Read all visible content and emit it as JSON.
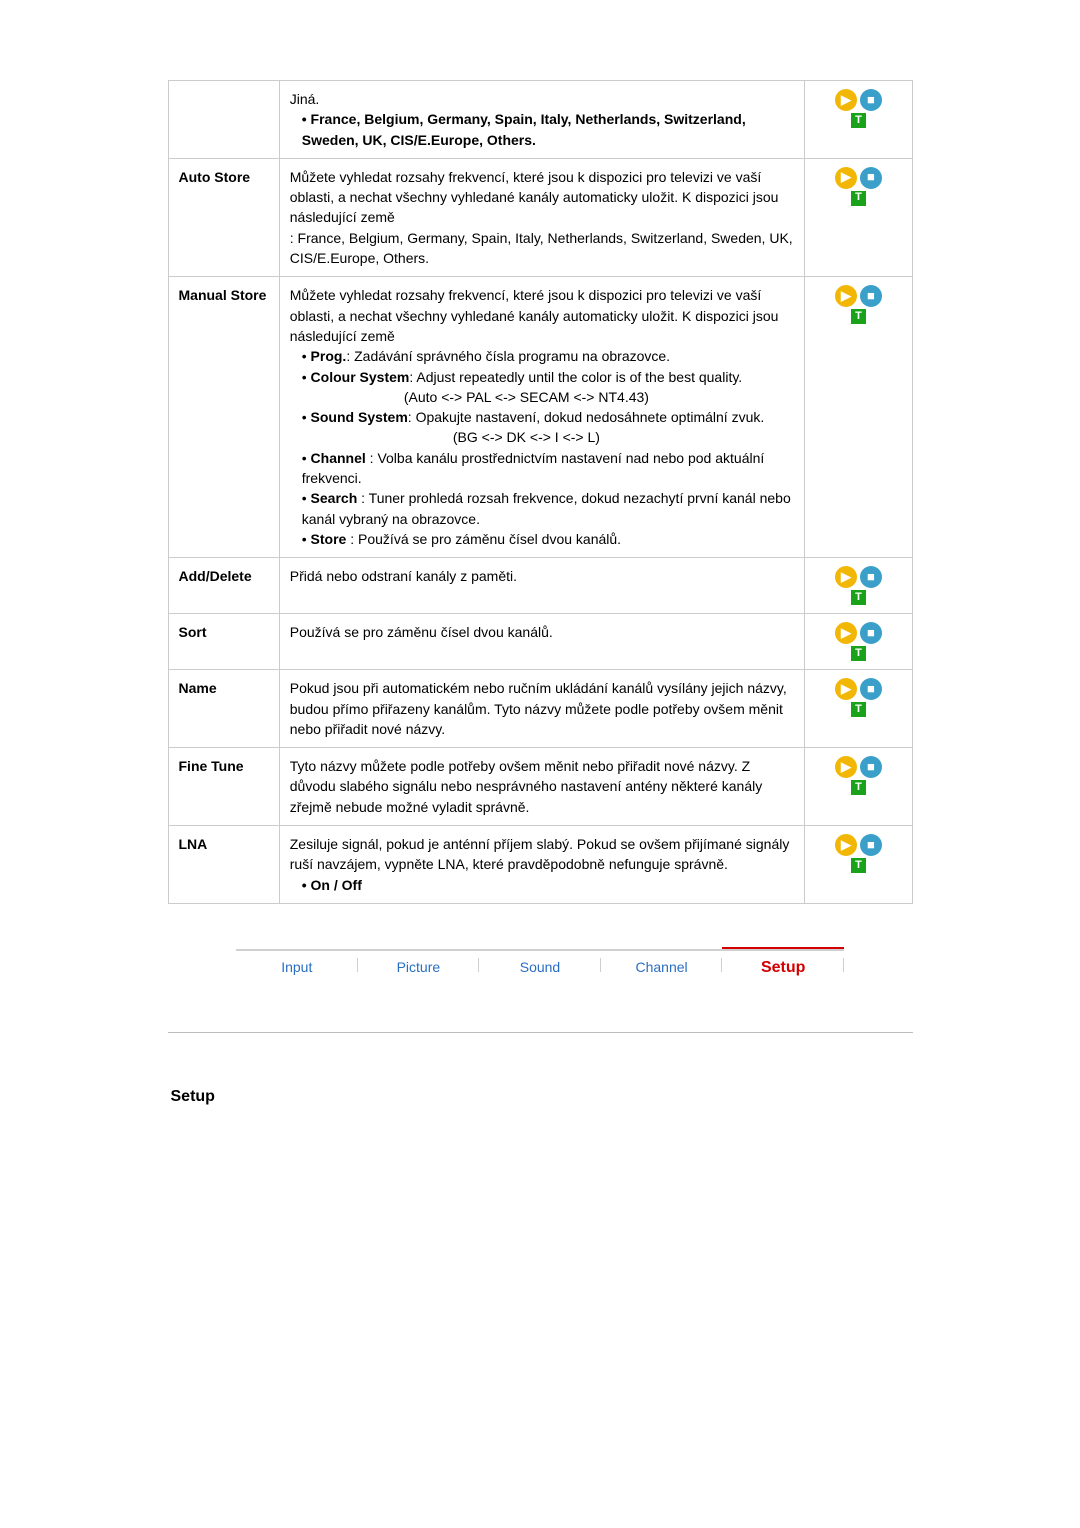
{
  "table": {
    "rows": [
      {
        "label": "",
        "desc_html": [
          {
            "t": "text",
            "v": "Jiná."
          },
          {
            "t": "bullet_bold",
            "v": "France, Belgium, Germany, Spain, Italy, Netherlands, Switzerland, Sweden, UK, CIS/E.Europe, Others."
          }
        ],
        "icons": true
      },
      {
        "label": "Auto Store",
        "desc_html": [
          {
            "t": "text",
            "v": "Můžete vyhledat rozsahy frekvencí, které jsou k dispozici pro televizi ve vaší oblasti, a nechat všechny vyhledané kanály automaticky uložit. K dispozici jsou následující země"
          },
          {
            "t": "text",
            "v": ": France, Belgium, Germany, Spain, Italy, Netherlands, Switzerland, Sweden, UK, CIS/E.Europe, Others."
          }
        ],
        "icons": true
      },
      {
        "label": "Manual Store",
        "desc_html": [
          {
            "t": "text",
            "v": "Můžete vyhledat rozsahy frekvencí, které jsou k dispozici pro televizi ve vaší oblasti, a nechat všechny vyhledané kanály automaticky uložit. K dispozici jsou následující země"
          },
          {
            "t": "bullet_kv",
            "k": "Prog.",
            "v": ": Zadávání správného čísla programu na obrazovce."
          },
          {
            "t": "bullet_kv",
            "k": "Colour System",
            "v": ": Adjust repeatedly until the color is of the best quality."
          },
          {
            "t": "center",
            "v": "(Auto <-> PAL <-> SECAM <-> NT4.43)"
          },
          {
            "t": "bullet_kv",
            "k": "Sound System",
            "v": ": Opakujte nastavení, dokud nedosáhnete optimální zvuk."
          },
          {
            "t": "center",
            "v": "(BG <-> DK <-> I <-> L)"
          },
          {
            "t": "bullet_kv",
            "k": "Channel",
            "v": " : Volba kanálu prostřednictvím nastavení nad nebo pod aktuální frekvenci."
          },
          {
            "t": "bullet_kv",
            "k": "Search",
            "v": " : Tuner prohledá rozsah frekvence, dokud nezachytí první kanál nebo kanál vybraný na obrazovce."
          },
          {
            "t": "bullet_kv",
            "k": "Store",
            "v": " : Používá se pro záměnu čísel dvou kanálů."
          }
        ],
        "icons": true
      },
      {
        "label": "Add/Delete",
        "desc_html": [
          {
            "t": "text",
            "v": "Přidá nebo odstraní kanály z paměti."
          }
        ],
        "icons": true
      },
      {
        "label": "Sort",
        "desc_html": [
          {
            "t": "text",
            "v": "Používá se pro záměnu čísel dvou kanálů."
          }
        ],
        "icons": true
      },
      {
        "label": "Name",
        "desc_html": [
          {
            "t": "text",
            "v": "Pokud jsou při automatickém nebo ručním ukládání kanálů vysílány jejich názvy, budou přímo přiřazeny kanálům. Tyto názvy můžete podle potřeby ovšem měnit nebo přiřadit nové názvy."
          }
        ],
        "icons": true
      },
      {
        "label": "Fine Tune",
        "desc_html": [
          {
            "t": "text",
            "v": "Tyto názvy můžete podle potřeby ovšem měnit nebo přiřadit nové názvy. Z důvodu slabého signálu nebo nesprávného nastavení antény některé kanály zřejmě nebude možné vyladit správně."
          }
        ],
        "icons": true
      },
      {
        "label": "LNA",
        "desc_html": [
          {
            "t": "text",
            "v": "Zesiluje signál, pokud je anténní příjem slabý. Pokud se ovšem přijímané signály ruší navzájem, vypněte LNA, které pravděpodobně nefunguje správně."
          },
          {
            "t": "bullet_bold",
            "v": "On / Off"
          }
        ],
        "icons": true
      }
    ]
  },
  "icons": {
    "play_glyph": "▶",
    "stop_glyph": "■",
    "t_glyph": "T",
    "play_bg": "#f2b705",
    "stop_bg": "#3aa0c9",
    "t_bg": "#1aa31a"
  },
  "tabs": {
    "items": [
      "Input",
      "Picture",
      "Sound",
      "Channel",
      "Setup"
    ],
    "active_index": 4,
    "inactive_color": "#2a6ec4",
    "active_color": "#d40000"
  },
  "section_title": "Setup",
  "colors": {
    "border": "#cccccc",
    "text": "#000000",
    "hr": "#bdbdbd"
  }
}
